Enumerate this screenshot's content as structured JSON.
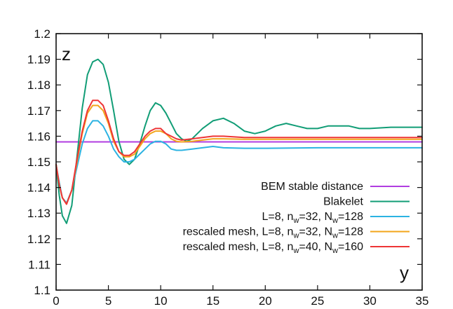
{
  "chart_data": {
    "type": "line",
    "xlabel": "y",
    "ylabel": "z",
    "xlim": [
      0,
      35
    ],
    "ylim": [
      1.1,
      1.2
    ],
    "xticks": [
      "0",
      "5",
      "10",
      "15",
      "20",
      "25",
      "30",
      "35"
    ],
    "yticks": [
      "1.1",
      "1.11",
      "1.12",
      "1.13",
      "1.14",
      "1.15",
      "1.16",
      "1.17",
      "1.18",
      "1.19",
      "1.2"
    ],
    "grid": false,
    "legend_position": "bottom-right",
    "series": [
      {
        "name": "BEM stable distance",
        "color": "#b13de0",
        "x": [
          0,
          35
        ],
        "y": [
          1.1578,
          1.1578
        ]
      },
      {
        "name": "Blakelet",
        "color": "#119d76",
        "x": [
          0,
          0.3,
          0.6,
          1,
          1.5,
          2,
          2.5,
          3,
          3.5,
          4,
          4.5,
          5,
          5.5,
          6,
          6.5,
          7,
          7.5,
          8,
          8.5,
          9,
          9.5,
          10,
          10.5,
          11,
          11.5,
          12,
          12.5,
          13,
          14,
          15,
          16,
          17,
          18,
          19,
          20,
          21,
          22,
          23,
          24,
          25,
          26,
          27,
          28,
          29,
          30,
          32,
          35
        ],
        "y": [
          1.149,
          1.137,
          1.129,
          1.126,
          1.133,
          1.152,
          1.171,
          1.184,
          1.189,
          1.19,
          1.188,
          1.181,
          1.17,
          1.158,
          1.151,
          1.149,
          1.151,
          1.157,
          1.164,
          1.17,
          1.173,
          1.172,
          1.169,
          1.165,
          1.161,
          1.159,
          1.158,
          1.159,
          1.163,
          1.166,
          1.167,
          1.165,
          1.162,
          1.161,
          1.162,
          1.164,
          1.165,
          1.164,
          1.163,
          1.163,
          1.164,
          1.164,
          1.164,
          1.163,
          1.163,
          1.1635,
          1.1635
        ]
      },
      {
        "name": "L=8, nw=32, Nw=128",
        "label_parts": [
          [
            "L=8, n",
            ""
          ],
          [
            "w",
            "sub"
          ],
          [
            "=32, N",
            ""
          ],
          [
            "w",
            "sub"
          ],
          [
            "=128",
            ""
          ]
        ],
        "color": "#2cb3e2",
        "x": [
          0,
          0.3,
          0.6,
          1,
          1.5,
          2,
          2.5,
          3,
          3.5,
          4,
          4.5,
          5,
          5.5,
          6,
          6.5,
          7,
          7.5,
          8,
          8.5,
          9,
          9.5,
          10,
          10.5,
          11,
          11.5,
          12,
          13,
          14,
          15,
          16,
          18,
          20,
          25,
          30,
          35
        ],
        "y": [
          1.149,
          1.142,
          1.136,
          1.134,
          1.139,
          1.148,
          1.157,
          1.163,
          1.166,
          1.166,
          1.164,
          1.16,
          1.155,
          1.152,
          1.15,
          1.15,
          1.151,
          1.153,
          1.155,
          1.157,
          1.158,
          1.158,
          1.157,
          1.155,
          1.1545,
          1.1545,
          1.155,
          1.1555,
          1.156,
          1.1555,
          1.1553,
          1.1553,
          1.1555,
          1.1555,
          1.1555
        ]
      },
      {
        "name": "rescaled mesh, L=8, nw=32, Nw=128",
        "label_parts": [
          [
            "rescaled mesh, L=8, n",
            ""
          ],
          [
            "w",
            "sub"
          ],
          [
            "=32, N",
            ""
          ],
          [
            "w",
            "sub"
          ],
          [
            "=128",
            ""
          ]
        ],
        "color": "#f3a51b",
        "x": [
          0,
          0.3,
          0.6,
          1,
          1.5,
          2,
          2.5,
          3,
          3.5,
          4,
          4.5,
          5,
          5.5,
          6,
          6.5,
          7,
          7.5,
          8,
          8.5,
          9,
          9.5,
          10,
          10.5,
          11,
          11.5,
          12,
          13,
          14,
          15,
          16,
          18,
          20,
          25,
          30,
          35
        ],
        "y": [
          1.149,
          1.141,
          1.136,
          1.1335,
          1.139,
          1.15,
          1.161,
          1.169,
          1.172,
          1.172,
          1.17,
          1.165,
          1.158,
          1.154,
          1.152,
          1.152,
          1.153,
          1.156,
          1.159,
          1.161,
          1.162,
          1.162,
          1.161,
          1.159,
          1.158,
          1.1578,
          1.158,
          1.1585,
          1.159,
          1.159,
          1.1588,
          1.1588,
          1.1588,
          1.1588,
          1.1588
        ]
      },
      {
        "name": "rescaled mesh, L=8, nw=40, Nw=160",
        "label_parts": [
          [
            "rescaled mesh, L=8, n",
            ""
          ],
          [
            "w",
            "sub"
          ],
          [
            "=40, N",
            ""
          ],
          [
            "w",
            "sub"
          ],
          [
            "=160",
            ""
          ]
        ],
        "color": "#ee3536",
        "x": [
          0,
          0.3,
          0.6,
          1,
          1.5,
          2,
          2.5,
          3,
          3.5,
          4,
          4.5,
          5,
          5.5,
          6,
          6.5,
          7,
          7.5,
          8,
          8.5,
          9,
          9.5,
          10,
          10.5,
          11,
          11.5,
          12,
          13,
          14,
          15,
          16,
          18,
          20,
          25,
          30,
          35
        ],
        "y": [
          1.149,
          1.141,
          1.136,
          1.1335,
          1.139,
          1.151,
          1.162,
          1.17,
          1.174,
          1.174,
          1.172,
          1.166,
          1.159,
          1.154,
          1.1525,
          1.1525,
          1.154,
          1.157,
          1.16,
          1.162,
          1.163,
          1.163,
          1.161,
          1.16,
          1.159,
          1.1585,
          1.159,
          1.1595,
          1.16,
          1.16,
          1.1595,
          1.1595,
          1.1595,
          1.1595,
          1.1595
        ]
      }
    ]
  }
}
